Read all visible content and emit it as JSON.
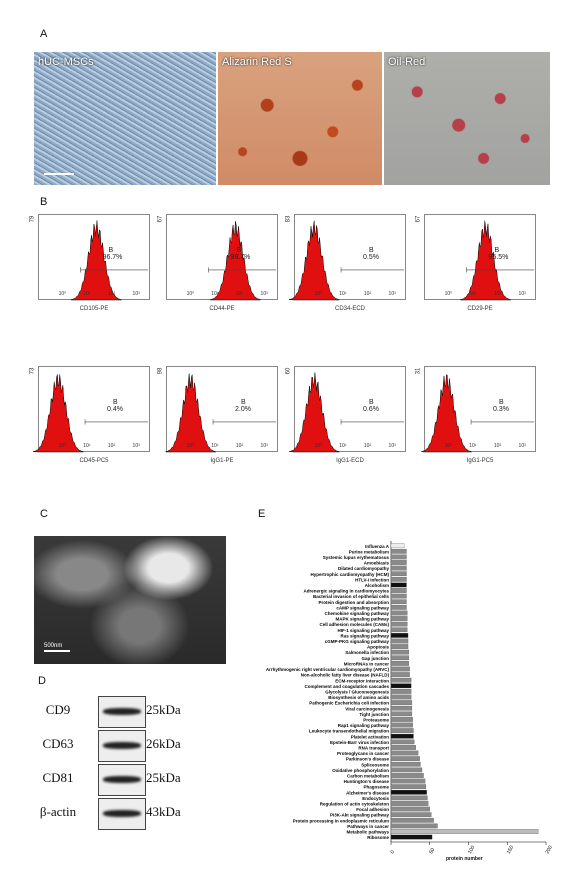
{
  "panels": {
    "a": "A",
    "b": "B",
    "c": "C",
    "d": "D",
    "e": "E"
  },
  "micrographs": [
    {
      "label": "hUC-MSCs"
    },
    {
      "label": "Alizarin Red S"
    },
    {
      "label": "Oil-Red"
    }
  ],
  "flow": [
    {
      "ymax": "79",
      "xlabel": "CD105-PE",
      "gate": "B",
      "pct": "96.7%",
      "peak": 0.52
    },
    {
      "ymax": "67",
      "xlabel": "CD44-PE",
      "gate": "B",
      "pct": "98.7%",
      "peak": 0.62
    },
    {
      "ymax": "83",
      "xlabel": "CD34-ECD",
      "gate": "B",
      "pct": "0.5%",
      "peak": 0.18
    },
    {
      "ymax": "67",
      "xlabel": "CD29-PE",
      "gate": "B",
      "pct": "95.5%",
      "peak": 0.55
    },
    {
      "ymax": "73",
      "xlabel": "CD45-PC5",
      "gate": "B",
      "pct": "0.4%",
      "peak": 0.18
    },
    {
      "ymax": "98",
      "xlabel": "IgG1-PE",
      "gate": "B",
      "pct": "2.0%",
      "peak": 0.22
    },
    {
      "ymax": "60",
      "xlabel": "IgG1-ECD",
      "gate": "B",
      "pct": "0.6%",
      "peak": 0.18
    },
    {
      "ymax": "31",
      "xlabel": "IgG1-PC5",
      "gate": "B",
      "pct": "0.3%",
      "peak": 0.2
    }
  ],
  "flow_ticks": [
    "10⁰",
    "10¹",
    "10²",
    "10³"
  ],
  "em": {
    "scale": "500nm"
  },
  "western": [
    {
      "name": "CD9",
      "kda": "25kDa"
    },
    {
      "name": "CD63",
      "kda": "26kDa"
    },
    {
      "name": "CD81",
      "kda": "25kDa"
    },
    {
      "name": "β-actin",
      "kda": "43kDa"
    }
  ],
  "chart_data": {
    "type": "bar",
    "orientation": "horizontal",
    "xlabel": "protein number",
    "xlim": [
      0,
      200
    ],
    "xticks": [
      "0",
      "50",
      "100",
      "150",
      "200"
    ],
    "categories": [
      "Influenza A",
      "Purine metabolism",
      "Systemic lupus erythematosus",
      "Amoebiasis",
      "Dilated cardiomyopathy",
      "Hypertrophic cardiomyopathy (HCM)",
      "HTLV-I infection",
      "Alcoholism",
      "Adrenergic signaling in cardiomyocytes",
      "Bacterial invasion of epithelial cells",
      "Protein digestion and absorption",
      "cAMP signaling pathway",
      "Chemokine signaling pathway",
      "MAPK signaling pathway",
      "Cell adhesion molecules (CAMs)",
      "HIF-1 signaling pathway",
      "Ras signaling pathway",
      "cGMP-PKG signaling pathway",
      "Apoptosis",
      "Salmonella infection",
      "Gap junction",
      "MicroRNAs in cancer",
      "Arrhythmogenic right ventricular cardiomyopathy (ARVC)",
      "Non-alcoholic fatty liver disease (NAFLD)",
      "ECM-receptor interaction",
      "Complement and coagulation cascades",
      "Glycolysis / Gluconeogenesis",
      "Biosynthesis of amino acids",
      "Pathogenic Escherichia coli infection",
      "Viral carcinogenesis",
      "Tight junction",
      "Proteasome",
      "Rap1 signaling pathway",
      "Leukocyte transendothelial migration",
      "Platelet activation",
      "Epstein-Barr virus infection",
      "RNA transport",
      "Proteoglycans in cancer",
      "Parkinson's disease",
      "Spliceosome",
      "Oxidative phosphorylation",
      "Carbon metabolism",
      "Huntington's disease",
      "Phagosome",
      "Alzheimer's disease",
      "Endocytosis",
      "Regulation of actin cytoskeleton",
      "Focal adhesion",
      "PI3K-Akt signaling pathway",
      "Protein processing in endoplasmic reticulum",
      "Pathways in cancer",
      "Metabolic pathways",
      "Ribosome"
    ],
    "values": [
      17,
      20,
      20,
      20,
      20,
      20,
      20,
      20,
      20,
      20,
      20,
      20,
      21,
      21,
      21,
      21,
      22,
      22,
      22,
      23,
      23,
      23,
      24,
      24,
      26,
      26,
      26,
      26,
      27,
      27,
      27,
      28,
      28,
      29,
      29,
      30,
      32,
      35,
      37,
      38,
      40,
      42,
      44,
      45,
      46,
      47,
      48,
      50,
      52,
      55,
      60,
      190,
      53
    ],
    "bar_colors": [
      "#eeeeee",
      "#8a8a8a",
      "#8a8a8a",
      "#8a8a8a",
      "#8a8a8a",
      "#8a8a8a",
      "#8a8a8a",
      "#111111",
      "#8a8a8a",
      "#8a8a8a",
      "#8a8a8a",
      "#8a8a8a",
      "#8a8a8a",
      "#8a8a8a",
      "#8a8a8a",
      "#8a8a8a",
      "#111111",
      "#8a8a8a",
      "#8a8a8a",
      "#8a8a8a",
      "#8a8a8a",
      "#8a8a8a",
      "#8a8a8a",
      "#8a8a8a",
      "#8a8a8a",
      "#111111",
      "#8a8a8a",
      "#8a8a8a",
      "#8a8a8a",
      "#8a8a8a",
      "#8a8a8a",
      "#8a8a8a",
      "#8a8a8a",
      "#8a8a8a",
      "#111111",
      "#8a8a8a",
      "#8a8a8a",
      "#8a8a8a",
      "#8a8a8a",
      "#8a8a8a",
      "#8a8a8a",
      "#8a8a8a",
      "#8a8a8a",
      "#8a8a8a",
      "#111111",
      "#8a8a8a",
      "#8a8a8a",
      "#8a8a8a",
      "#8a8a8a",
      "#8a8a8a",
      "#8a8a8a",
      "#bbbbbb",
      "#111111"
    ]
  }
}
